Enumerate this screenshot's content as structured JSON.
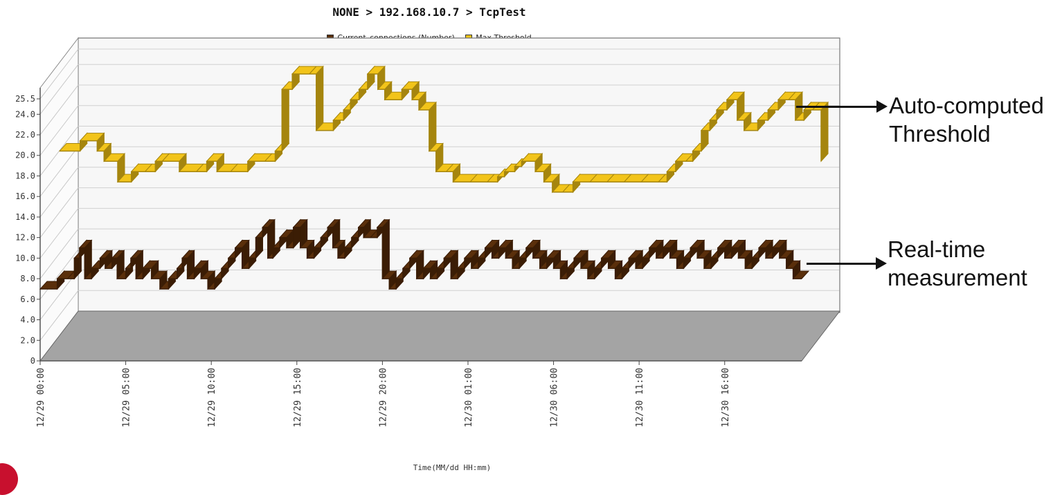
{
  "colors": {
    "current_series": "#5a2f0b",
    "current_series_dark": "#3b1d05",
    "threshold_series": "#f2c41a",
    "threshold_series_dark": "#a5850e",
    "floor": "#a4a4a4",
    "wall": "#f7f7f7",
    "arrow": "#111111"
  },
  "annotations": {
    "threshold": [
      "Auto-computed",
      "Threshold"
    ],
    "realtime": [
      "Real-time",
      "measurement"
    ]
  },
  "chart_data": {
    "type": "area",
    "render_style": "3d-ribbon",
    "title": "NONE > 192.168.10.7 > TcpTest",
    "xlabel": "Time(MM/dd HH:mm)",
    "ylabel": "",
    "ylim": [
      0,
      25.5
    ],
    "yticks": [
      0,
      2.0,
      4.0,
      6.0,
      8.0,
      10.0,
      12.0,
      14.0,
      16.0,
      18.0,
      20.0,
      22.0,
      24.0,
      25.5
    ],
    "ytick_labels": [
      "0",
      "2.0",
      "4.0",
      "6.0",
      "8.0",
      "10.0",
      "12.0",
      "14.0",
      "16.0",
      "18.0",
      "20.0",
      "22.0",
      "24.0",
      "25.5"
    ],
    "x_hours_start": 0,
    "x_hours_end": 44.5,
    "xticks_hours": [
      0,
      5,
      10,
      15,
      20,
      25,
      30,
      35,
      40
    ],
    "xtick_labels": [
      "12/29 00:00",
      "12/29 05:00",
      "12/29 10:00",
      "12/29 15:00",
      "12/29 20:00",
      "12/30 01:00",
      "12/30 06:00",
      "12/30 11:00",
      "12/30 16:00"
    ],
    "grid": true,
    "legend_position": "top",
    "series": [
      {
        "name": "Current_connections (Number)",
        "color": "#5a2f0b",
        "points": [
          [
            0,
            7
          ],
          [
            1,
            8
          ],
          [
            1.6,
            8
          ],
          [
            2,
            10
          ],
          [
            2.3,
            11
          ],
          [
            2.6,
            8
          ],
          [
            3,
            9
          ],
          [
            3.5,
            10
          ],
          [
            3.8,
            9
          ],
          [
            4.2,
            10
          ],
          [
            4.5,
            8
          ],
          [
            5,
            9
          ],
          [
            5.3,
            10
          ],
          [
            5.6,
            8
          ],
          [
            6,
            9
          ],
          [
            6.5,
            8
          ],
          [
            7,
            7
          ],
          [
            7.5,
            8
          ],
          [
            8,
            9
          ],
          [
            8.3,
            10
          ],
          [
            8.6,
            8
          ],
          [
            9,
            9
          ],
          [
            9.4,
            8
          ],
          [
            9.8,
            7
          ],
          [
            10.2,
            8
          ],
          [
            10.6,
            9
          ],
          [
            11,
            10
          ],
          [
            11.4,
            11
          ],
          [
            11.8,
            9
          ],
          [
            12.2,
            10
          ],
          [
            12.6,
            12
          ],
          [
            13,
            13
          ],
          [
            13.3,
            10
          ],
          [
            13.6,
            11
          ],
          [
            14,
            12
          ],
          [
            14.4,
            11
          ],
          [
            14.8,
            13
          ],
          [
            15.2,
            11
          ],
          [
            15.6,
            10
          ],
          [
            16,
            11
          ],
          [
            16.4,
            12
          ],
          [
            16.8,
            13
          ],
          [
            17.1,
            11
          ],
          [
            17.4,
            10
          ],
          [
            17.8,
            11
          ],
          [
            18.2,
            12
          ],
          [
            18.6,
            13
          ],
          [
            18.9,
            12
          ],
          [
            19.3,
            12
          ],
          [
            19.7,
            13
          ],
          [
            20,
            8
          ],
          [
            20.4,
            7
          ],
          [
            20.8,
            8
          ],
          [
            21.2,
            9
          ],
          [
            21.6,
            10
          ],
          [
            22,
            8
          ],
          [
            22.4,
            9
          ],
          [
            22.8,
            8
          ],
          [
            23.2,
            9
          ],
          [
            23.6,
            10
          ],
          [
            24,
            8
          ],
          [
            24.4,
            9
          ],
          [
            24.8,
            10
          ],
          [
            25.2,
            9
          ],
          [
            25.6,
            10
          ],
          [
            26,
            11
          ],
          [
            26.4,
            10
          ],
          [
            26.8,
            11
          ],
          [
            27.2,
            10
          ],
          [
            27.6,
            9
          ],
          [
            28,
            10
          ],
          [
            28.4,
            11
          ],
          [
            28.8,
            10
          ],
          [
            29.2,
            9
          ],
          [
            29.6,
            10
          ],
          [
            30,
            9
          ],
          [
            30.4,
            8
          ],
          [
            30.8,
            9
          ],
          [
            31.2,
            10
          ],
          [
            31.6,
            9
          ],
          [
            32,
            8
          ],
          [
            32.4,
            9
          ],
          [
            32.8,
            10
          ],
          [
            33.2,
            9
          ],
          [
            33.6,
            8
          ],
          [
            34,
            9
          ],
          [
            34.4,
            10
          ],
          [
            34.8,
            9
          ],
          [
            35.2,
            10
          ],
          [
            35.6,
            11
          ],
          [
            36,
            10
          ],
          [
            36.4,
            11
          ],
          [
            36.8,
            10
          ],
          [
            37.2,
            9
          ],
          [
            37.6,
            10
          ],
          [
            38,
            11
          ],
          [
            38.4,
            10
          ],
          [
            38.8,
            9
          ],
          [
            39.2,
            10
          ],
          [
            39.6,
            11
          ],
          [
            40,
            10
          ],
          [
            40.4,
            11
          ],
          [
            40.8,
            10
          ],
          [
            41.2,
            9
          ],
          [
            41.6,
            10
          ],
          [
            42,
            11
          ],
          [
            42.4,
            10
          ],
          [
            42.8,
            11
          ],
          [
            43.2,
            10
          ],
          [
            43.6,
            9
          ],
          [
            44,
            8
          ],
          [
            44.5,
            8
          ]
        ]
      },
      {
        "name": "Max Threshold",
        "color": "#f2c41a",
        "points": [
          [
            0,
            18
          ],
          [
            1.2,
            19
          ],
          [
            2.2,
            18
          ],
          [
            2.6,
            17
          ],
          [
            3.4,
            15
          ],
          [
            4.2,
            16
          ],
          [
            5,
            16
          ],
          [
            5.6,
            17
          ],
          [
            6,
            17
          ],
          [
            7,
            16
          ],
          [
            8,
            16
          ],
          [
            8.6,
            17
          ],
          [
            9.2,
            16
          ],
          [
            10,
            16
          ],
          [
            11,
            17
          ],
          [
            12,
            17
          ],
          [
            12.6,
            18
          ],
          [
            13,
            24
          ],
          [
            13.6,
            25.5
          ],
          [
            14.6,
            25.5
          ],
          [
            15,
            20
          ],
          [
            16,
            21
          ],
          [
            16.6,
            22
          ],
          [
            17,
            23
          ],
          [
            17.5,
            24
          ],
          [
            18,
            25.5
          ],
          [
            18.6,
            24
          ],
          [
            19,
            23
          ],
          [
            20,
            24
          ],
          [
            20.6,
            23
          ],
          [
            21,
            22
          ],
          [
            21.6,
            18
          ],
          [
            22,
            16
          ],
          [
            22.6,
            16
          ],
          [
            23,
            15
          ],
          [
            24,
            15
          ],
          [
            25,
            15
          ],
          [
            25.6,
            15.5
          ],
          [
            26,
            16
          ],
          [
            26.6,
            16.5
          ],
          [
            27,
            17
          ],
          [
            27.8,
            16
          ],
          [
            28.3,
            15
          ],
          [
            28.8,
            14
          ],
          [
            29.4,
            14
          ],
          [
            30,
            15
          ],
          [
            31,
            15
          ],
          [
            32,
            15
          ],
          [
            33,
            15
          ],
          [
            34,
            15
          ],
          [
            35,
            15
          ],
          [
            35.5,
            16
          ],
          [
            36,
            17
          ],
          [
            36.6,
            17
          ],
          [
            37,
            18
          ],
          [
            37.5,
            20
          ],
          [
            38,
            21
          ],
          [
            38.4,
            22
          ],
          [
            39,
            23
          ],
          [
            39.6,
            21
          ],
          [
            40,
            20
          ],
          [
            40.8,
            21
          ],
          [
            41.4,
            22
          ],
          [
            42,
            23
          ],
          [
            42.6,
            23
          ],
          [
            43,
            21
          ],
          [
            43.5,
            22
          ],
          [
            44,
            22
          ],
          [
            44.5,
            17
          ]
        ]
      }
    ]
  }
}
